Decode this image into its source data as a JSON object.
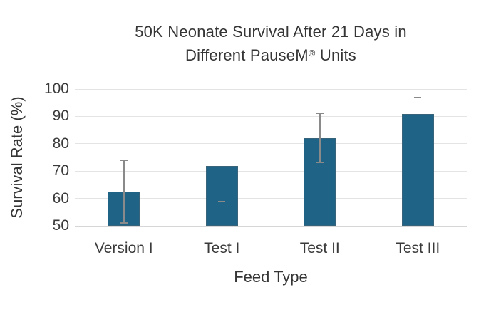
{
  "title": {
    "line1": "50K Neonate Survival After 21 Days in",
    "line2_prefix": "Different PauseM",
    "line2_sup": "®",
    "line2_suffix": " Units"
  },
  "chart_data": {
    "type": "bar",
    "title": "50K Neonate Survival After 21 Days in Different PauseM® Units",
    "xlabel": "Feed Type",
    "ylabel": "Survival Rate (%)",
    "categories": [
      "Version I",
      "Test I",
      "Test II",
      "Test III"
    ],
    "values": [
      62.5,
      72,
      82,
      91
    ],
    "error_bars": {
      "upper": [
        74,
        85,
        91,
        97
      ],
      "lower": [
        51,
        59,
        73,
        85
      ]
    },
    "ylim": [
      50,
      100
    ],
    "yticks": [
      50,
      60,
      70,
      80,
      90,
      100
    ],
    "grid": true,
    "legend": "none",
    "bar_color": "#1f6386",
    "error_color": "#8a8a8a"
  }
}
